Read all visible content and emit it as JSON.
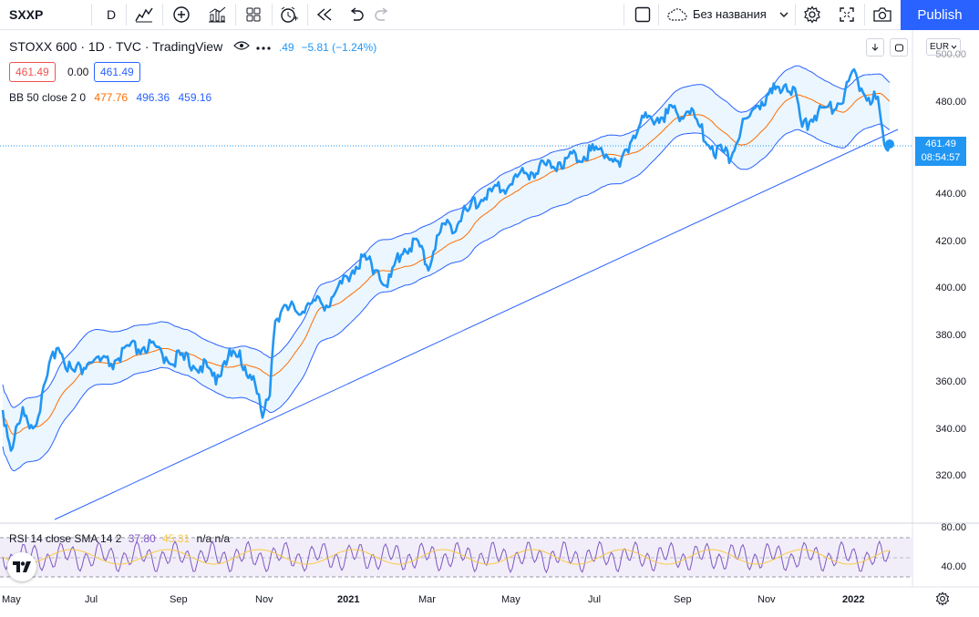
{
  "toolbar": {
    "symbol": "SXXP",
    "interval": "D",
    "layout_name": "Без названия",
    "publish_label": "Publish"
  },
  "legend": {
    "title": "STOXX 600 · 1D · TVC · TradingView",
    "last_partial": ".49",
    "change": "−5.81 (−1.24%)",
    "bid": "461.49",
    "spread": "0.00",
    "ask": "461.49"
  },
  "bb_indicator": {
    "label": "BB 50 close 2 0",
    "basis": "477.76",
    "upper": "496.36",
    "lower": "459.16"
  },
  "rsi_indicator": {
    "label": "RSI 14 close SMA 14 2",
    "rsi": "37.80",
    "sma": "45.31",
    "extra": "n/a n/a"
  },
  "price_axis": {
    "currency": "EUR",
    "ticks": [
      "480.00",
      "460.00",
      "440.00",
      "420.00",
      "400.00",
      "380.00",
      "360.00",
      "340.00",
      "320.00"
    ],
    "top_partial": "500.00"
  },
  "rsi_axis": {
    "ticks": [
      "80.00",
      "40.00"
    ]
  },
  "time_axis": {
    "ticks": [
      "May",
      "Jul",
      "Sep",
      "Nov",
      "2021",
      "Mar",
      "May",
      "Jul",
      "Sep",
      "Nov",
      "2022"
    ]
  },
  "last_price": {
    "price": "461.49",
    "countdown": "08:54:57"
  },
  "colors": {
    "price_line": "#2196f3",
    "bb_basis": "#ff6d00",
    "bb_band": "#2962ff",
    "rsi_line": "#7e57c2",
    "rsi_sma": "#f7c948",
    "accent": "#2962ff"
  }
}
